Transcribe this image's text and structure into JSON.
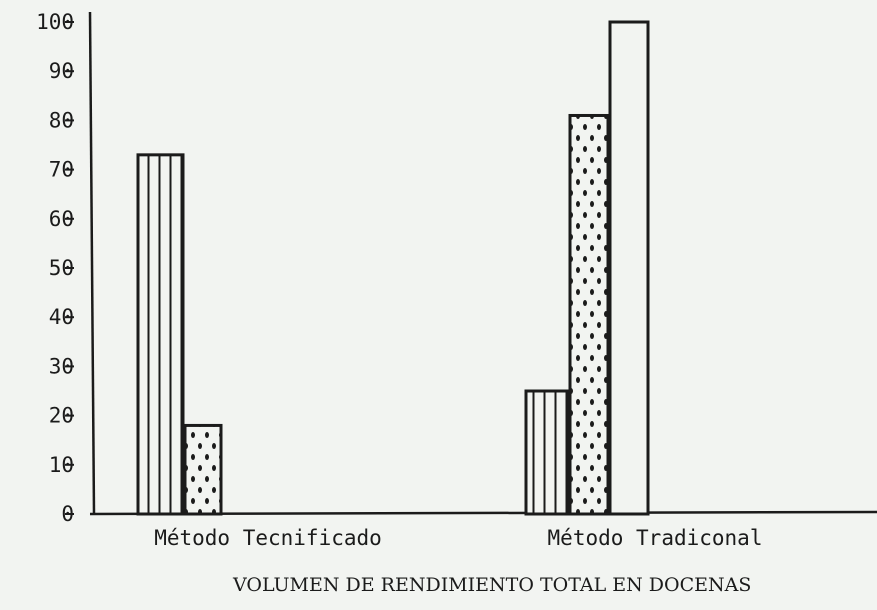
{
  "chart_data": {
    "type": "bar",
    "title": "VOLUMEN DE RENDIMIENTO TOTAL EN DOCENAS",
    "xlabel": "",
    "ylabel": "",
    "ylim": [
      0,
      100
    ],
    "yticks": [
      "0",
      "10",
      "20",
      "30",
      "40",
      "50",
      "60",
      "70",
      "80",
      "90",
      "100"
    ],
    "grid": false,
    "categories": [
      "Método Tecnificado",
      "Método Tradiconal"
    ],
    "series": [
      {
        "pattern": "vertical-stripes",
        "values": [
          73,
          25
        ]
      },
      {
        "pattern": "dots",
        "values": [
          18,
          81
        ]
      },
      {
        "pattern": "plain",
        "values": [
          null,
          100
        ]
      }
    ]
  }
}
